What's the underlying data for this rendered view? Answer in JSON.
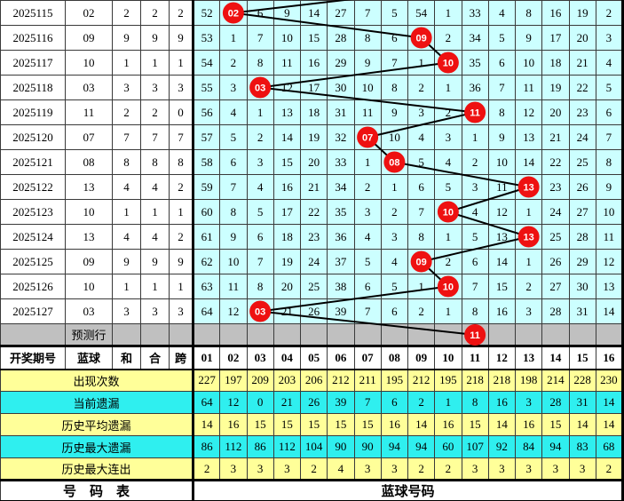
{
  "left_header": {
    "period": "开奖期号",
    "blue": "蓝球",
    "he": "和",
    "hw": "合",
    "kua": "跨"
  },
  "columns": [
    "01",
    "02",
    "03",
    "04",
    "05",
    "06",
    "07",
    "08",
    "09",
    "10",
    "11",
    "12",
    "13",
    "14",
    "15",
    "16"
  ],
  "rows": [
    {
      "period": "2025115",
      "blue": "02",
      "he": "2",
      "hw": "2",
      "kua": "2",
      "circle": {
        "col": 2,
        "label": "02"
      },
      "cells": [
        "52",
        "",
        "6",
        "9",
        "14",
        "27",
        "7",
        "5",
        "54",
        "1",
        "33",
        "4",
        "8",
        "16",
        "19",
        "2"
      ]
    },
    {
      "period": "2025116",
      "blue": "09",
      "he": "9",
      "hw": "9",
      "kua": "9",
      "circle": {
        "col": 9,
        "label": "09"
      },
      "cells": [
        "53",
        "1",
        "7",
        "10",
        "15",
        "28",
        "8",
        "6",
        "",
        "2",
        "34",
        "5",
        "9",
        "17",
        "20",
        "3"
      ]
    },
    {
      "period": "2025117",
      "blue": "10",
      "he": "1",
      "hw": "1",
      "kua": "1",
      "circle": {
        "col": 10,
        "label": "10"
      },
      "cells": [
        "54",
        "2",
        "8",
        "11",
        "16",
        "29",
        "9",
        "7",
        "1",
        "",
        "35",
        "6",
        "10",
        "18",
        "21",
        "4"
      ]
    },
    {
      "period": "2025118",
      "blue": "03",
      "he": "3",
      "hw": "3",
      "kua": "3",
      "circle": {
        "col": 3,
        "label": "03"
      },
      "cells": [
        "55",
        "3",
        "",
        "12",
        "17",
        "30",
        "10",
        "8",
        "2",
        "1",
        "36",
        "7",
        "11",
        "19",
        "22",
        "5"
      ]
    },
    {
      "period": "2025119",
      "blue": "11",
      "he": "2",
      "hw": "2",
      "kua": "0",
      "circle": {
        "col": 11,
        "label": "11"
      },
      "cells": [
        "56",
        "4",
        "1",
        "13",
        "18",
        "31",
        "11",
        "9",
        "3",
        "2",
        "",
        "8",
        "12",
        "20",
        "23",
        "6"
      ]
    },
    {
      "period": "2025120",
      "blue": "07",
      "he": "7",
      "hw": "7",
      "kua": "7",
      "circle": {
        "col": 7,
        "label": "07"
      },
      "cells": [
        "57",
        "5",
        "2",
        "14",
        "19",
        "32",
        "",
        "10",
        "4",
        "3",
        "1",
        "9",
        "13",
        "21",
        "24",
        "7"
      ]
    },
    {
      "period": "2025121",
      "blue": "08",
      "he": "8",
      "hw": "8",
      "kua": "8",
      "circle": {
        "col": 8,
        "label": "08"
      },
      "cells": [
        "58",
        "6",
        "3",
        "15",
        "20",
        "33",
        "1",
        "",
        "5",
        "4",
        "2",
        "10",
        "14",
        "22",
        "25",
        "8"
      ]
    },
    {
      "period": "2025122",
      "blue": "13",
      "he": "4",
      "hw": "4",
      "kua": "2",
      "circle": {
        "col": 13,
        "label": "13"
      },
      "cells": [
        "59",
        "7",
        "4",
        "16",
        "21",
        "34",
        "2",
        "1",
        "6",
        "5",
        "3",
        "11",
        "",
        "23",
        "26",
        "9"
      ]
    },
    {
      "period": "2025123",
      "blue": "10",
      "he": "1",
      "hw": "1",
      "kua": "1",
      "circle": {
        "col": 10,
        "label": "10"
      },
      "cells": [
        "60",
        "8",
        "5",
        "17",
        "22",
        "35",
        "3",
        "2",
        "7",
        "",
        "4",
        "12",
        "1",
        "24",
        "27",
        "10"
      ]
    },
    {
      "period": "2025124",
      "blue": "13",
      "he": "4",
      "hw": "4",
      "kua": "2",
      "circle": {
        "col": 13,
        "label": "13"
      },
      "cells": [
        "61",
        "9",
        "6",
        "18",
        "23",
        "36",
        "4",
        "3",
        "8",
        "1",
        "5",
        "13",
        "",
        "25",
        "28",
        "11"
      ]
    },
    {
      "period": "2025125",
      "blue": "09",
      "he": "9",
      "hw": "9",
      "kua": "9",
      "circle": {
        "col": 9,
        "label": "09"
      },
      "cells": [
        "62",
        "10",
        "7",
        "19",
        "24",
        "37",
        "5",
        "4",
        "",
        "2",
        "6",
        "14",
        "1",
        "26",
        "29",
        "12"
      ]
    },
    {
      "period": "2025126",
      "blue": "10",
      "he": "1",
      "hw": "1",
      "kua": "1",
      "circle": {
        "col": 10,
        "label": "10"
      },
      "cells": [
        "63",
        "11",
        "8",
        "20",
        "25",
        "38",
        "6",
        "5",
        "1",
        "",
        "7",
        "15",
        "2",
        "27",
        "30",
        "13"
      ]
    },
    {
      "period": "2025127",
      "blue": "03",
      "he": "3",
      "hw": "3",
      "kua": "3",
      "circle": {
        "col": 3,
        "label": "03"
      },
      "cells": [
        "64",
        "12",
        "",
        "21",
        "26",
        "39",
        "7",
        "6",
        "2",
        "1",
        "8",
        "16",
        "3",
        "28",
        "31",
        "14"
      ]
    }
  ],
  "prediction_row": {
    "label": "预测行",
    "circle": {
      "col": 11,
      "label": "11"
    }
  },
  "incoming_line_from_column": 10,
  "stats_rows": [
    {
      "label": "出现次数",
      "tone": "yellow",
      "values": [
        "227",
        "197",
        "209",
        "203",
        "206",
        "212",
        "211",
        "195",
        "212",
        "195",
        "218",
        "218",
        "198",
        "214",
        "228",
        "230"
      ]
    },
    {
      "label": "当前遗漏",
      "tone": "cyan",
      "values": [
        "64",
        "12",
        "0",
        "21",
        "26",
        "39",
        "7",
        "6",
        "2",
        "1",
        "8",
        "16",
        "3",
        "28",
        "31",
        "14"
      ]
    },
    {
      "label": "历史平均遗漏",
      "tone": "yellow",
      "values": [
        "14",
        "16",
        "15",
        "15",
        "15",
        "15",
        "15",
        "16",
        "14",
        "16",
        "15",
        "14",
        "16",
        "15",
        "14",
        "14"
      ]
    },
    {
      "label": "历史最大遗漏",
      "tone": "cyan",
      "values": [
        "86",
        "112",
        "86",
        "112",
        "104",
        "90",
        "90",
        "94",
        "94",
        "60",
        "107",
        "92",
        "84",
        "94",
        "83",
        "68"
      ]
    },
    {
      "label": "历史最大连出",
      "tone": "yellow",
      "values": [
        "2",
        "3",
        "3",
        "3",
        "2",
        "4",
        "3",
        "3",
        "2",
        "2",
        "3",
        "3",
        "3",
        "3",
        "3",
        "2"
      ]
    }
  ],
  "footer": {
    "left": "号　码　表",
    "right": "蓝球号码"
  },
  "colors": {
    "grid_bg": "#ccffff",
    "stat_yellow": "#ffff99",
    "stat_cyan": "#2fefef",
    "pred_gray": "#c0c0c0",
    "circle_red": "#ee1111",
    "blue_text": "#0000cc",
    "line": "#000000"
  }
}
